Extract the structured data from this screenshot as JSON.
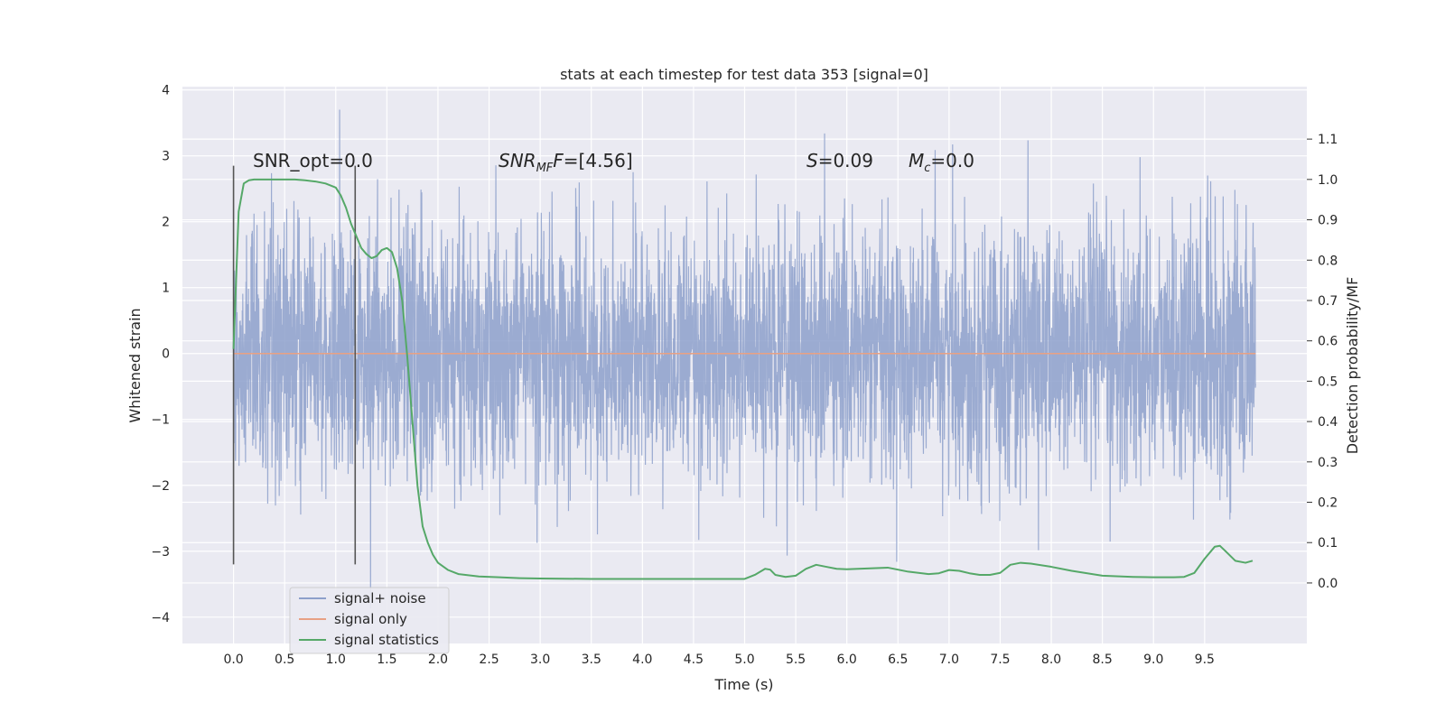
{
  "chart_data": {
    "type": "line",
    "title": "stats at each timestep for test data 353 [signal=0]",
    "xlabel": "Time (s)",
    "ylabel": "Whitened strain",
    "y2label": "Detection probability/MF",
    "xlim": [
      -0.5,
      10.5
    ],
    "ylim": [
      -4.4,
      4.05
    ],
    "y2lim": [
      -0.15,
      1.23
    ],
    "x_ticks": [
      0.0,
      0.5,
      1.0,
      1.5,
      2.0,
      2.5,
      3.0,
      3.5,
      4.0,
      4.5,
      5.0,
      5.5,
      6.0,
      6.5,
      7.0,
      7.5,
      8.0,
      8.5,
      9.0,
      9.5
    ],
    "x_tick_labels": [
      "0.0",
      "0.5",
      "1.0",
      "1.5",
      "2.0",
      "2.5",
      "3.0",
      "3.5",
      "4.0",
      "4.5",
      "5.0",
      "5.5",
      "6.0",
      "6.5",
      "7.0",
      "7.5",
      "8.0",
      "8.5",
      "9.0",
      "9.5"
    ],
    "y_ticks": [
      -4,
      -3,
      -2,
      -1,
      0,
      1,
      2,
      3,
      4
    ],
    "y_tick_labels": [
      "−4",
      "−3",
      "−2",
      "−1",
      "0",
      "1",
      "2",
      "3",
      "4"
    ],
    "y2_ticks": [
      0.0,
      0.1,
      0.2,
      0.3,
      0.4,
      0.5,
      0.6,
      0.7,
      0.8,
      0.9,
      1.0,
      1.1
    ],
    "y2_tick_labels": [
      "0.0",
      "0.1",
      "0.2",
      "0.3",
      "0.4",
      "0.5",
      "0.6",
      "0.7",
      "0.8",
      "0.9",
      "1.0",
      "1.1"
    ],
    "grid": true,
    "legend_position": "lower-left",
    "colors": {
      "noise": "#8da0cb",
      "signal": "#e8a184",
      "stats": "#55a868",
      "window": "#555555",
      "plot_bg": "#eaeaf2",
      "grid": "#ffffff"
    },
    "series": [
      {
        "name": "signal+ noise",
        "axis": "left",
        "x_range": [
          0.0,
          9.999
        ],
        "y_range_approx": [
          -4.0,
          3.7
        ],
        "note_values": "dense noise trace, approximately 4096 samples"
      },
      {
        "name": "signal only",
        "axis": "left",
        "x": [
          0.0,
          9.999
        ],
        "y": [
          0.0,
          0.0
        ]
      },
      {
        "name": "signal statistics",
        "axis": "right",
        "x": [
          0.0,
          0.05,
          0.1,
          0.15,
          0.2,
          0.3,
          0.4,
          0.5,
          0.6,
          0.7,
          0.8,
          0.9,
          1.0,
          1.05,
          1.1,
          1.15,
          1.2,
          1.25,
          1.3,
          1.35,
          1.4,
          1.45,
          1.5,
          1.55,
          1.6,
          1.65,
          1.7,
          1.75,
          1.8,
          1.85,
          1.9,
          1.95,
          2.0,
          2.1,
          2.2,
          2.4,
          2.6,
          2.8,
          3.0,
          3.5,
          4.0,
          4.5,
          5.0,
          5.1,
          5.2,
          5.25,
          5.3,
          5.4,
          5.5,
          5.6,
          5.7,
          5.8,
          5.9,
          6.0,
          6.2,
          6.4,
          6.6,
          6.8,
          6.9,
          7.0,
          7.1,
          7.2,
          7.3,
          7.4,
          7.5,
          7.6,
          7.7,
          7.8,
          8.0,
          8.2,
          8.5,
          8.8,
          9.0,
          9.2,
          9.3,
          9.4,
          9.5,
          9.6,
          9.65,
          9.7,
          9.8,
          9.9,
          9.97
        ],
        "y": [
          0.58,
          0.92,
          0.99,
          0.998,
          1.0,
          1.0,
          1.0,
          1.0,
          1.0,
          0.998,
          0.995,
          0.99,
          0.98,
          0.96,
          0.93,
          0.89,
          0.86,
          0.83,
          0.815,
          0.805,
          0.81,
          0.825,
          0.83,
          0.82,
          0.78,
          0.7,
          0.56,
          0.4,
          0.24,
          0.14,
          0.1,
          0.07,
          0.05,
          0.032,
          0.022,
          0.016,
          0.014,
          0.012,
          0.011,
          0.01,
          0.01,
          0.01,
          0.01,
          0.02,
          0.035,
          0.033,
          0.02,
          0.015,
          0.018,
          0.035,
          0.045,
          0.04,
          0.035,
          0.034,
          0.036,
          0.038,
          0.028,
          0.022,
          0.024,
          0.032,
          0.03,
          0.024,
          0.02,
          0.02,
          0.025,
          0.045,
          0.05,
          0.048,
          0.04,
          0.03,
          0.018,
          0.015,
          0.014,
          0.014,
          0.015,
          0.025,
          0.06,
          0.09,
          0.092,
          0.08,
          0.055,
          0.05,
          0.055
        ]
      }
    ],
    "vertical_markers": [
      {
        "x": 0.0,
        "y_range": [
          -3.2,
          2.85
        ]
      },
      {
        "x": 1.19,
        "y_range": [
          -3.2,
          2.85
        ]
      }
    ],
    "annotations": {
      "snr_opt": "SNR_opt=0.0",
      "snr_mf_symbol": "SNR",
      "snr_mf_sub": "MF",
      "snr_mf_value": "=[4.56]",
      "s_symbol": "S",
      "s_value": "=0.09",
      "mc_symbol": "M",
      "mc_sub": "c",
      "mc_value": "=0.0"
    }
  }
}
